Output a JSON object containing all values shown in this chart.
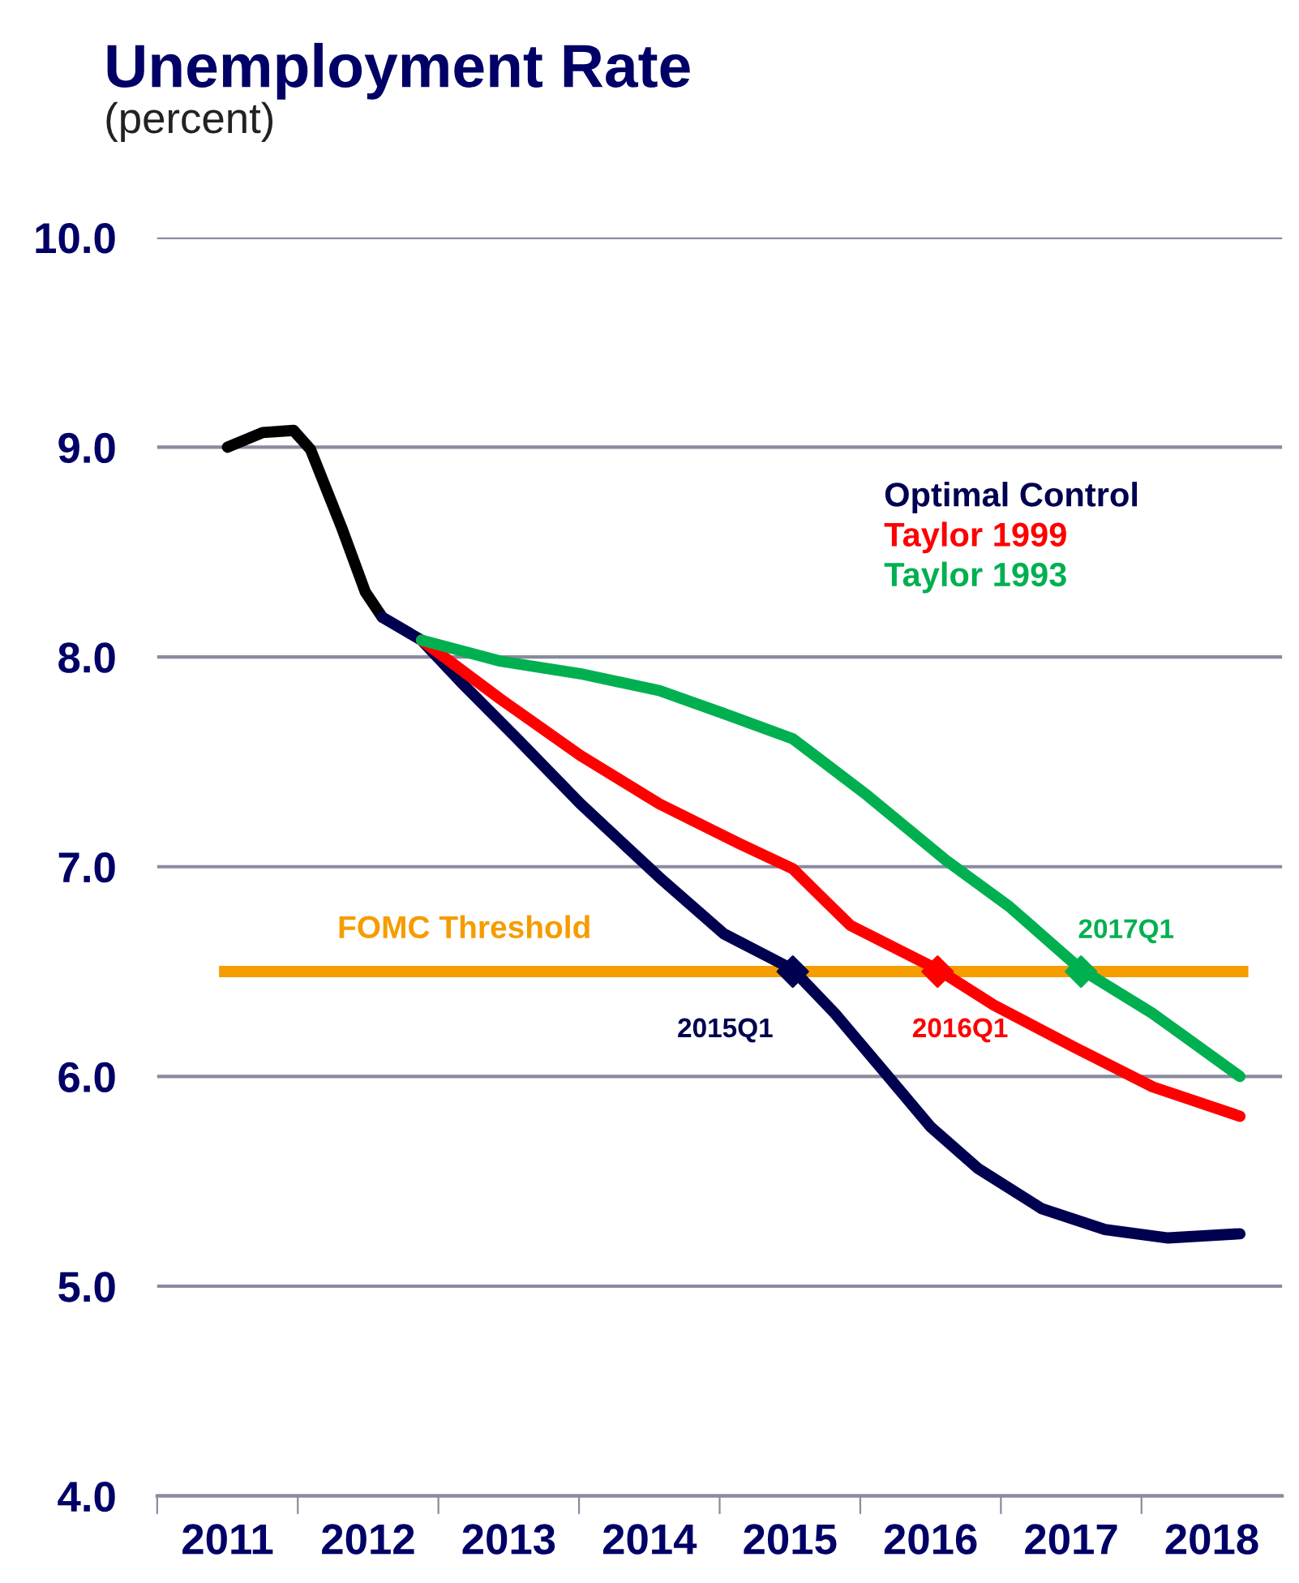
{
  "chart_data": {
    "type": "line",
    "title": "Unemployment Rate",
    "subtitle": "(percent)",
    "xlim": [
      2010.5,
      2018.5
    ],
    "xticks": [
      {
        "value": 2010.5,
        "label": null
      },
      2011,
      {
        "value": 2011.5,
        "label": null
      },
      2012,
      {
        "value": 2012.5,
        "label": null
      },
      2013,
      {
        "value": 2013.5,
        "label": null
      },
      2014,
      {
        "value": 2014.5,
        "label": null
      },
      2015,
      {
        "value": 2015.5,
        "label": null
      },
      2016,
      {
        "value": 2016.5,
        "label": null
      },
      2017,
      {
        "value": 2017.5,
        "label": null
      },
      2018
    ],
    "ylim": [
      4,
      10
    ],
    "yticks": [
      {
        "value": 4,
        "label": "4.0"
      },
      {
        "value": 5,
        "label": "5.0"
      },
      {
        "value": 6,
        "label": "6.0"
      },
      {
        "value": 7,
        "label": "7.0"
      },
      {
        "value": 8,
        "label": "8.0"
      },
      {
        "value": 9,
        "label": "9.0"
      },
      {
        "value": 10,
        "label": "10.0"
      }
    ],
    "grid": "y",
    "legend": "top right",
    "marker": "none",
    "line_style": "solid",
    "series": [
      {
        "color": "#000000",
        "x": [
          2011.0,
          2011.25,
          2011.47,
          2011.59,
          2011.81,
          2011.98,
          2012.1
        ],
        "values": [
          9.0,
          9.07,
          9.08,
          8.99,
          8.62,
          8.31,
          8.19
        ]
      },
      {
        "name": "Optimal Control",
        "color": "#000050",
        "x": [
          2012.1,
          2012.38,
          2012.66,
          2013.06,
          2013.51,
          2014.07,
          2014.53,
          2015.02,
          2015.32,
          2015.66,
          2016.0,
          2016.34,
          2016.79,
          2017.24,
          2017.69,
          2018.2
        ],
        "values": [
          8.19,
          8.08,
          7.88,
          7.61,
          7.3,
          6.95,
          6.68,
          6.51,
          6.3,
          6.03,
          5.76,
          5.56,
          5.37,
          5.27,
          5.23,
          5.25
        ]
      },
      {
        "name": "Taylor 1999",
        "color": "#ff0000",
        "x": [
          2012.38,
          2012.94,
          2013.51,
          2014.07,
          2014.64,
          2015.02,
          2015.43,
          2016.05,
          2016.45,
          2017.02,
          2017.58,
          2018.2
        ],
        "values": [
          8.08,
          7.8,
          7.53,
          7.3,
          7.11,
          6.99,
          6.72,
          6.51,
          6.34,
          6.14,
          5.95,
          5.81
        ]
      },
      {
        "name": "Taylor 1993",
        "color": "#00b050",
        "x": [
          2012.38,
          2012.94,
          2013.51,
          2014.07,
          2014.53,
          2015.02,
          2015.55,
          2016.11,
          2016.56,
          2017.07,
          2017.58,
          2018.2
        ],
        "values": [
          8.08,
          7.98,
          7.92,
          7.84,
          7.73,
          7.61,
          7.34,
          7.03,
          6.81,
          6.51,
          6.3,
          6.0
        ]
      },
      {
        "type": "scatter",
        "marker": "diamond",
        "color": "#000050",
        "x": [
          2015.02
        ],
        "values": [
          6.5
        ]
      },
      {
        "type": "scatter",
        "marker": "diamond",
        "color": "#ff0000",
        "x": [
          2016.05
        ],
        "values": [
          6.5
        ]
      },
      {
        "type": "scatter",
        "marker": "diamond",
        "color": "#00b050",
        "x": [
          2017.07
        ],
        "values": [
          6.5
        ]
      }
    ],
    "ref_lines": [
      {
        "axis": "y",
        "value": 6.5,
        "label": "FOMC Threshold",
        "color": "#f59c00"
      }
    ],
    "annotations": [
      {
        "text": "2015Q1",
        "x": 2015.02,
        "y": 6.5
      },
      {
        "text": "2016Q1",
        "x": 2016.05,
        "y": 6.5
      },
      {
        "text": "2017Q1",
        "x": 2017.07,
        "y": 6.5
      }
    ]
  }
}
